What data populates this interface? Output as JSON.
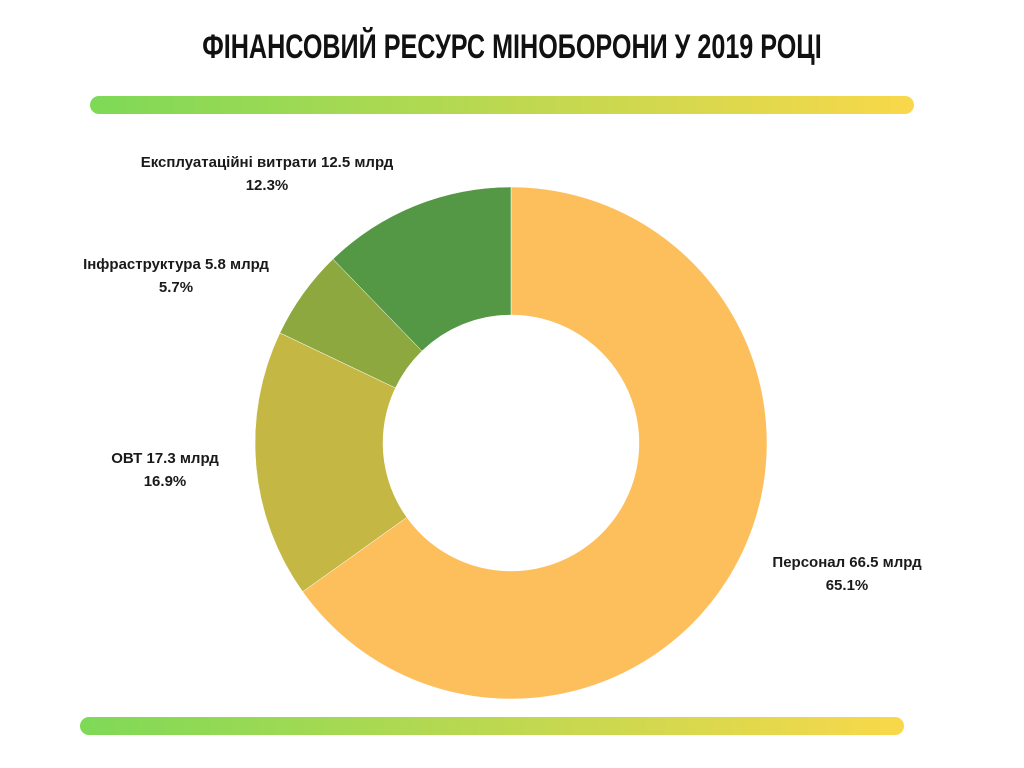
{
  "chart_data": {
    "type": "pie",
    "title": "ФІНАНСОВИЙ РЕСУРС МІНОБОРОНИ У 2019 РОЦІ",
    "donut": true,
    "slices": [
      {
        "name": "Персонал",
        "value": 66.5,
        "unit": "млрд",
        "percent": "65.1%",
        "color": "#FDBE5C"
      },
      {
        "name": "ОВТ",
        "value": 17.3,
        "unit": "млрд",
        "percent": "16.9%",
        "color": "#C4B743"
      },
      {
        "name": "Інфраструктура",
        "value": 5.8,
        "unit": "млрд",
        "percent": "5.7%",
        "color": "#8DA83E"
      },
      {
        "name": "Експлуатаційні витрати",
        "value": 12.5,
        "unit": "млрд",
        "percent": "12.3%",
        "color": "#549744"
      }
    ]
  },
  "colors": {
    "bar_gradient_start": "#7ED957",
    "bar_gradient_end": "#F9D84A"
  }
}
